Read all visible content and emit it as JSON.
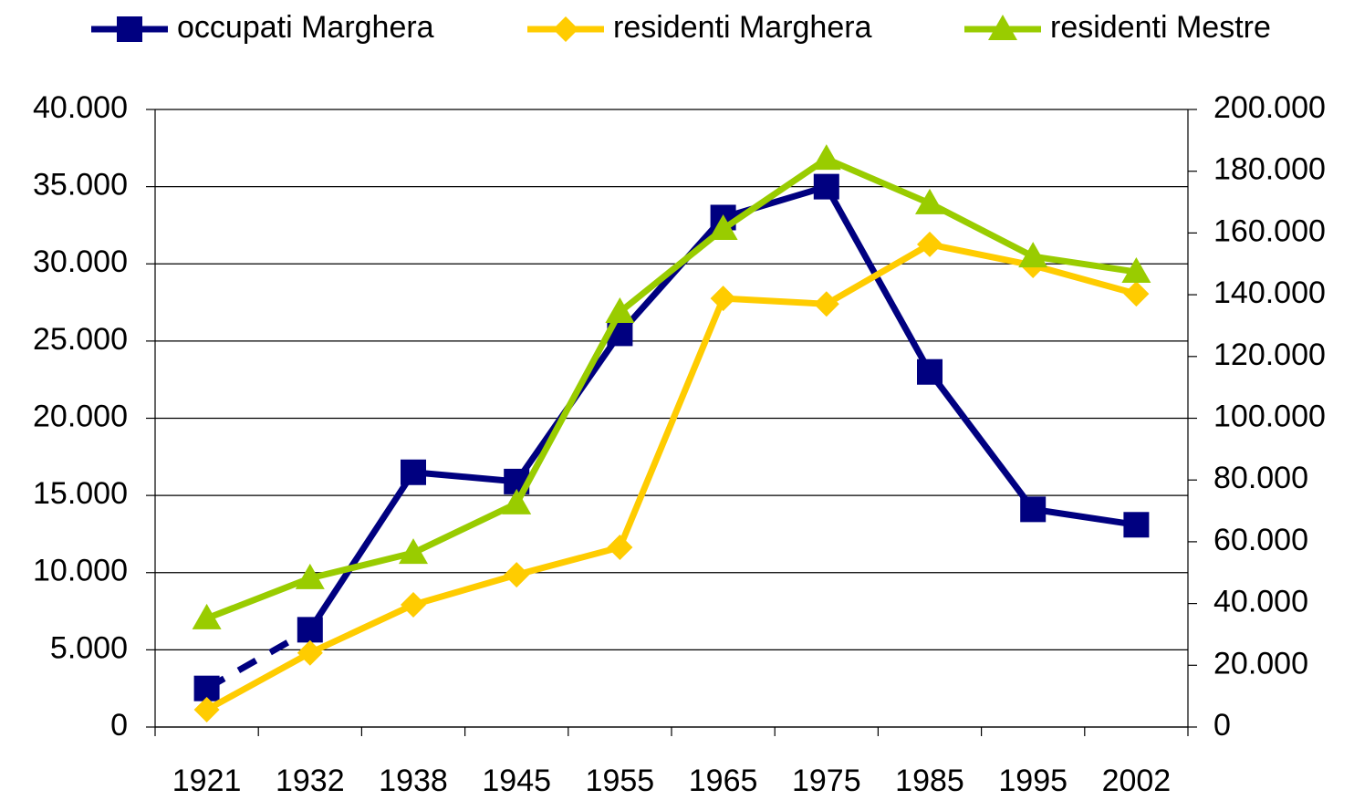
{
  "chart_data": {
    "type": "line",
    "categories": [
      "1921",
      "1932",
      "1938",
      "1945",
      "1955",
      "1965",
      "1975",
      "1985",
      "1995",
      "2002"
    ],
    "series": [
      {
        "name": "occupati Marghera",
        "color": "#000080",
        "marker": "square",
        "axis": "y",
        "dashed_segments": [
          0
        ],
        "values": [
          2500,
          6300,
          16500,
          15900,
          25500,
          33000,
          35000,
          23000,
          14100,
          13100
        ]
      },
      {
        "name": "residenti Marghera",
        "color": "#FFCC00",
        "marker": "diamond",
        "axis": "y2",
        "values": [
          5600,
          24000,
          39600,
          49300,
          58200,
          138800,
          137000,
          156300,
          149500,
          140300
        ]
      },
      {
        "name": "residenti Mestre",
        "color": "#99CC00",
        "marker": "triangle",
        "axis": "y2",
        "values": [
          35200,
          48200,
          56400,
          72400,
          134400,
          161300,
          184000,
          169600,
          152400,
          147400
        ]
      }
    ],
    "ylim": [
      0,
      40000
    ],
    "yticks": [
      0,
      {
        "value": 5000,
        "label": "5.000"
      },
      {
        "value": 10000,
        "label": "10.000"
      },
      {
        "value": 15000,
        "label": "15.000"
      },
      {
        "value": 20000,
        "label": "20.000"
      },
      {
        "value": 25000,
        "label": "25.000"
      },
      {
        "value": 30000,
        "label": "30.000"
      },
      {
        "value": 35000,
        "label": "35.000"
      },
      {
        "value": 40000,
        "label": "40.000"
      }
    ],
    "y2lim": [
      0,
      200000
    ],
    "y2ticks": [
      0,
      {
        "value": 20000,
        "label": "20.000"
      },
      {
        "value": 40000,
        "label": "40.000"
      },
      {
        "value": 60000,
        "label": "60.000"
      },
      {
        "value": 80000,
        "label": "80.000"
      },
      {
        "value": 100000,
        "label": "100.000"
      },
      {
        "value": 120000,
        "label": "120.000"
      },
      {
        "value": 140000,
        "label": "140.000"
      },
      {
        "value": 160000,
        "label": "160.000"
      },
      {
        "value": 180000,
        "label": "180.000"
      },
      {
        "value": 200000,
        "label": "200.000"
      }
    ],
    "grid": true,
    "legend": "top"
  }
}
